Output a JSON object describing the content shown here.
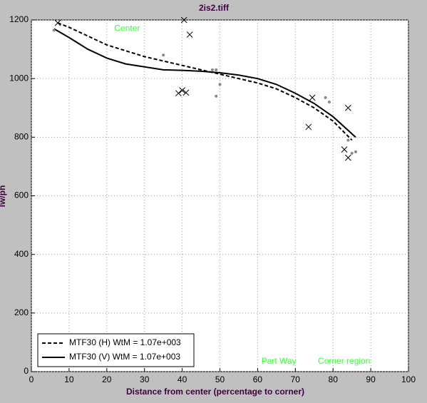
{
  "chart_data": {
    "type": "line",
    "title": "2is2.tiff",
    "xlabel": "Distance from center (percentage to corner)",
    "ylabel": "lw/ph",
    "xlim": [
      0,
      100
    ],
    "xticks": [
      0,
      10,
      20,
      30,
      40,
      50,
      60,
      70,
      80,
      90,
      100
    ],
    "ylim": [
      0,
      1200
    ],
    "yticks": [
      0,
      200,
      400,
      600,
      800,
      1000,
      1200
    ],
    "grid": true,
    "legend": "lower left",
    "annotations": [
      {
        "text": "Center",
        "x": 22,
        "y": 1170,
        "color": "#33ff33"
      },
      {
        "text": "Part Way",
        "x": 61,
        "y": 35,
        "color": "#33ff33"
      },
      {
        "text": "Corner region",
        "x": 76,
        "y": 35,
        "color": "#33ff33"
      }
    ],
    "series": [
      {
        "name": "MTF30 (H)  WtM = 1.07e+003",
        "color": "#000000",
        "style": "dashed",
        "x": [
          7,
          10,
          15,
          20,
          25,
          30,
          35,
          40,
          45,
          50,
          55,
          60,
          65,
          70,
          75,
          80,
          85
        ],
        "values": [
          1190,
          1175,
          1145,
          1115,
          1095,
          1075,
          1060,
          1045,
          1030,
          1015,
          1000,
          985,
          965,
          935,
          900,
          855,
          790
        ]
      },
      {
        "name": "MTF30 (V)  WtM = 1.07e+003",
        "color": "#000000",
        "style": "solid",
        "x": [
          6,
          10,
          15,
          20,
          25,
          30,
          35,
          40,
          45,
          50,
          55,
          60,
          65,
          70,
          75,
          80,
          86
        ],
        "values": [
          1170,
          1140,
          1100,
          1070,
          1050,
          1040,
          1030,
          1028,
          1025,
          1020,
          1012,
          1000,
          980,
          950,
          915,
          870,
          800
        ]
      },
      {
        "color": "#000000",
        "marker": "x",
        "x": [
          7,
          40.5,
          42,
          39,
          40,
          41,
          73.5,
          74.5,
          84,
          83,
          84
        ],
        "values": [
          1190,
          1200,
          1150,
          950,
          960,
          952,
          835,
          935,
          900,
          758,
          730
        ]
      },
      {
        "color": "#888888",
        "marker": "dot",
        "x": [
          6,
          35,
          48,
          49,
          49,
          50,
          78,
          79,
          85,
          86,
          84
        ],
        "values": [
          1165,
          1080,
          1030,
          1030,
          940,
          980,
          935,
          920,
          745,
          750,
          790
        ]
      }
    ]
  }
}
